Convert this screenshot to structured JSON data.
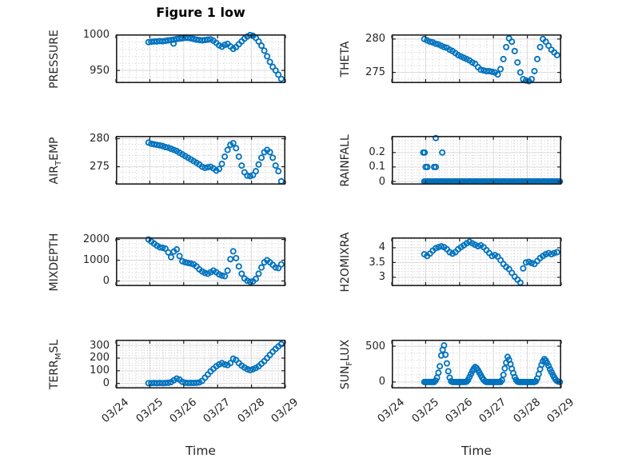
{
  "figure": {
    "title": "Figure 1 low",
    "xlabel": "Time",
    "x_tick_labels": [
      "03/24",
      "03/25",
      "03/26",
      "03/27",
      "03/28",
      "03/29"
    ],
    "x_range_days": [
      0,
      5
    ],
    "colors": {
      "marker": "#0072BD",
      "axis": "#1f1f1f",
      "tick_label": "#262626",
      "major_grid": "#d9d9d9",
      "minor_grid": "#c4c4c4",
      "background": "#ffffff"
    }
  },
  "chart_data": [
    {
      "type": "scatter",
      "id": "pressure",
      "row": 0,
      "col": 0,
      "ylabel": "PRESSURE",
      "ylabel_parts": [
        [
          "PRESSURE",
          false
        ]
      ],
      "ylim": [
        932,
        1001
      ],
      "yticks": [
        950,
        1000
      ],
      "ytick_labels": [
        "950",
        "1000"
      ],
      "y_minor_step": 10,
      "grid": true,
      "minor_grid": true,
      "series": {
        "t0": 0.96,
        "dt": 0.083333,
        "values": [
          990,
          990.5,
          991,
          991,
          991.5,
          991.3,
          991.8,
          992.5,
          993,
          993.5,
          994.5,
          995,
          995.5,
          996,
          996,
          995.5,
          994.5,
          993.5,
          993,
          992.5,
          993,
          993.5,
          994,
          992,
          989,
          985.5,
          983.5,
          986,
          987.5,
          984,
          980.5,
          983,
          987,
          991,
          995,
          998,
          1000,
          999,
          996,
          991,
          985,
          978,
          970,
          962,
          955,
          950,
          944,
          938,
          null
        ]
      },
      "extra_points": [
        [
          1.7,
          988
        ]
      ]
    },
    {
      "type": "scatter",
      "id": "theta",
      "row": 0,
      "col": 1,
      "ylabel": "THETA",
      "ylabel_parts": [
        [
          "THETA",
          false
        ]
      ],
      "ylim": [
        273.4,
        280.7
      ],
      "yticks": [
        275,
        280
      ],
      "ytick_labels": [
        "275",
        "280"
      ],
      "y_minor_step": 1,
      "grid": true,
      "minor_grid": true,
      "series": {
        "t0": 0.96,
        "dt": 0.083333,
        "values": [
          280,
          279.8,
          279.6,
          279.5,
          279.3,
          279.2,
          279,
          278.8,
          278.7,
          278.4,
          278.2,
          277.9,
          277.6,
          277.4,
          277.2,
          277,
          276.8,
          276.5,
          276.3,
          275.8,
          275.4,
          275.3,
          275.2,
          275.2,
          275.1,
          275,
          274.7,
          275.5,
          277,
          278.8,
          280.1,
          279.6,
          278.2,
          276.5,
          275,
          274,
          273.8,
          273.7,
          274,
          275.2,
          277,
          278.8,
          280,
          279.6,
          279,
          278.4,
          278,
          277.6,
          null
        ]
      },
      "extra_points": []
    },
    {
      "type": "scatter",
      "id": "air_temp",
      "row": 1,
      "col": 0,
      "ylabel": "AIR_TEMP",
      "ylabel_parts": [
        [
          "AIR",
          false
        ],
        [
          "T",
          true
        ],
        [
          "EMP",
          false
        ]
      ],
      "ylim": [
        271.8,
        280.5
      ],
      "yticks": [
        275,
        280
      ],
      "ytick_labels": [
        "275",
        "280"
      ],
      "y_minor_step": 1,
      "grid": true,
      "minor_grid": true,
      "series": {
        "t0": 0.96,
        "dt": 0.083333,
        "values": [
          279.3,
          279.1,
          279,
          278.9,
          278.8,
          278.7,
          278.5,
          278.4,
          278.2,
          278,
          277.8,
          277.5,
          277.2,
          276.9,
          276.6,
          276.3,
          276,
          275.7,
          275.4,
          275,
          274.8,
          274.9,
          275,
          274.7,
          274.3,
          274.6,
          275.5,
          276.8,
          278,
          278.9,
          279.2,
          278.3,
          276.8,
          275.2,
          274,
          273.4,
          273.3,
          273.5,
          274.2,
          275.4,
          276.6,
          277.6,
          278,
          277.6,
          276.6,
          275.2,
          274.2,
          272.4,
          null
        ]
      },
      "extra_points": []
    },
    {
      "type": "scatter",
      "id": "rainfall",
      "row": 1,
      "col": 1,
      "ylabel": "RAINFALL",
      "ylabel_parts": [
        [
          "RAINFALL",
          false
        ]
      ],
      "ylim": [
        -0.022,
        0.315
      ],
      "yticks": [
        0,
        0.1,
        0.2
      ],
      "ytick_labels": [
        "0",
        "0.1",
        "0.2"
      ],
      "y_minor_step": 0.02,
      "grid": true,
      "minor_grid": true,
      "series": {
        "t0": 0.96,
        "dt": 0.041667,
        "values": [
          0,
          0,
          0,
          0,
          0,
          0,
          0,
          0,
          0,
          0,
          0,
          0,
          0,
          0,
          0,
          0,
          0,
          0,
          0,
          0,
          0,
          0,
          0,
          0,
          0,
          0,
          0,
          0,
          0,
          0,
          0,
          0,
          0,
          0,
          0,
          0,
          0,
          0,
          0,
          0,
          0,
          0,
          0,
          0,
          0,
          0,
          0,
          0,
          0,
          0,
          0,
          0,
          0,
          0,
          0,
          0,
          0,
          0,
          0,
          0,
          0,
          0,
          0,
          0,
          0,
          0,
          0,
          0,
          0,
          0,
          0,
          0,
          0,
          0,
          0,
          0,
          0,
          0,
          0,
          0,
          0,
          0,
          0,
          0,
          0,
          0,
          0,
          0,
          0,
          0,
          0,
          0,
          0,
          0,
          0,
          0,
          0
        ]
      },
      "extra_points": [
        [
          0.93,
          0.2
        ],
        [
          0.97,
          0.2
        ],
        [
          1.0,
          0.1
        ],
        [
          1.05,
          0.1
        ],
        [
          1.25,
          0.1
        ],
        [
          1.3,
          0.1
        ],
        [
          1.3,
          0.3
        ],
        [
          1.49,
          0.2
        ]
      ]
    },
    {
      "type": "scatter",
      "id": "mixdepth",
      "row": 2,
      "col": 0,
      "ylabel": "MIXDEPTH",
      "ylabel_parts": [
        [
          "MIXDEPTH",
          false
        ]
      ],
      "ylim": [
        -250,
        2100
      ],
      "yticks": [
        0,
        1000,
        2000
      ],
      "ytick_labels": [
        "0",
        "1000",
        "2000"
      ],
      "y_minor_step": 200,
      "grid": true,
      "minor_grid": true,
      "series": {
        "t0": 0.96,
        "dt": 0.083333,
        "values": [
          2000,
          1900,
          1800,
          1700,
          1620,
          1600,
          1560,
          1380,
          1150,
          1420,
          1520,
          1200,
          950,
          900,
          870,
          840,
          800,
          700,
          560,
          460,
          390,
          350,
          420,
          500,
          420,
          320,
          260,
          230,
          500,
          1050,
          1430,
          1100,
          700,
          350,
          120,
          10,
          -40,
          -20,
          100,
          350,
          650,
          900,
          1000,
          900,
          780,
          650,
          620,
          800,
          null
        ]
      },
      "extra_points": []
    },
    {
      "type": "scatter",
      "id": "h2omixra",
      "row": 2,
      "col": 1,
      "ylabel": "H2OMIXRA",
      "ylabel_parts": [
        [
          "H2OMIXRA",
          false
        ]
      ],
      "ylim": [
        2.7,
        4.35
      ],
      "yticks": [
        3,
        3.5,
        4
      ],
      "ytick_labels": [
        "3",
        "3.5",
        "4"
      ],
      "y_minor_step": 0.1,
      "grid": true,
      "minor_grid": true,
      "series": {
        "t0": 0.96,
        "dt": 0.083333,
        "values": [
          3.78,
          3.72,
          3.8,
          3.9,
          3.98,
          4.02,
          4.05,
          4.02,
          3.95,
          3.85,
          3.8,
          3.85,
          3.95,
          4.02,
          4.08,
          4.15,
          4.2,
          4.15,
          4.1,
          4.05,
          4.08,
          4.02,
          3.92,
          3.82,
          3.72,
          3.75,
          3.7,
          3.58,
          3.45,
          3.35,
          3.28,
          3.15,
          3.02,
          2.92,
          2.82,
          3.3,
          3.5,
          3.52,
          3.48,
          3.45,
          3.55,
          3.65,
          3.72,
          3.78,
          3.82,
          3.78,
          3.82,
          3.85,
          null
        ]
      },
      "extra_points": []
    },
    {
      "type": "scatter",
      "id": "terr_msl",
      "row": 3,
      "col": 0,
      "ylabel": "TERR_MSL",
      "ylabel_parts": [
        [
          "TERR",
          false
        ],
        [
          "M",
          true
        ],
        [
          "SL",
          false
        ]
      ],
      "ylim": [
        -40,
        345
      ],
      "yticks": [
        0,
        100,
        200,
        300
      ],
      "ytick_labels": [
        "0",
        "100",
        "200",
        "300"
      ],
      "y_minor_step": 20,
      "grid": true,
      "minor_grid": true,
      "series": {
        "t0": 0.96,
        "dt": 0.083333,
        "values": [
          2,
          2,
          3,
          2,
          3,
          2,
          3,
          5,
          10,
          25,
          38,
          30,
          12,
          5,
          3,
          4,
          3,
          5,
          8,
          20,
          45,
          70,
          95,
          115,
          135,
          150,
          160,
          150,
          145,
          160,
          195,
          185,
          160,
          140,
          125,
          112,
          105,
          112,
          122,
          135,
          155,
          175,
          200,
          225,
          250,
          272,
          292,
          310,
          null
        ]
      },
      "extra_points": []
    },
    {
      "type": "scatter",
      "id": "sun_flux",
      "row": 3,
      "col": 1,
      "ylabel": "SUN_FLUX",
      "ylabel_parts": [
        [
          "SUN",
          false
        ],
        [
          "F",
          true
        ],
        [
          "LUX",
          false
        ]
      ],
      "ylim": [
        -90,
        590
      ],
      "yticks": [
        0,
        500
      ],
      "ytick_labels": [
        "0",
        "500"
      ],
      "y_minor_step": 100,
      "grid": true,
      "minor_grid": true,
      "series": {
        "t0": 0.96,
        "dt": 0.041667,
        "values": [
          0,
          0,
          0,
          0,
          0,
          0,
          0,
          0,
          20,
          60,
          130,
          220,
          370,
          450,
          510,
          380,
          260,
          150,
          60,
          10,
          0,
          0,
          0,
          0,
          0,
          0,
          0,
          0,
          0,
          0,
          5,
          30,
          70,
          110,
          150,
          185,
          210,
          195,
          165,
          130,
          95,
          60,
          30,
          10,
          0,
          0,
          0,
          0,
          0,
          0,
          0,
          0,
          0,
          0,
          0,
          25,
          100,
          190,
          270,
          350,
          310,
          250,
          185,
          125,
          70,
          30,
          5,
          0,
          0,
          0,
          0,
          0,
          0,
          0,
          0,
          0,
          0,
          0,
          0,
          10,
          50,
          110,
          180,
          240,
          290,
          320,
          300,
          265,
          225,
          180,
          140,
          100,
          65,
          35,
          15,
          5,
          0
        ]
      },
      "extra_points": []
    }
  ]
}
